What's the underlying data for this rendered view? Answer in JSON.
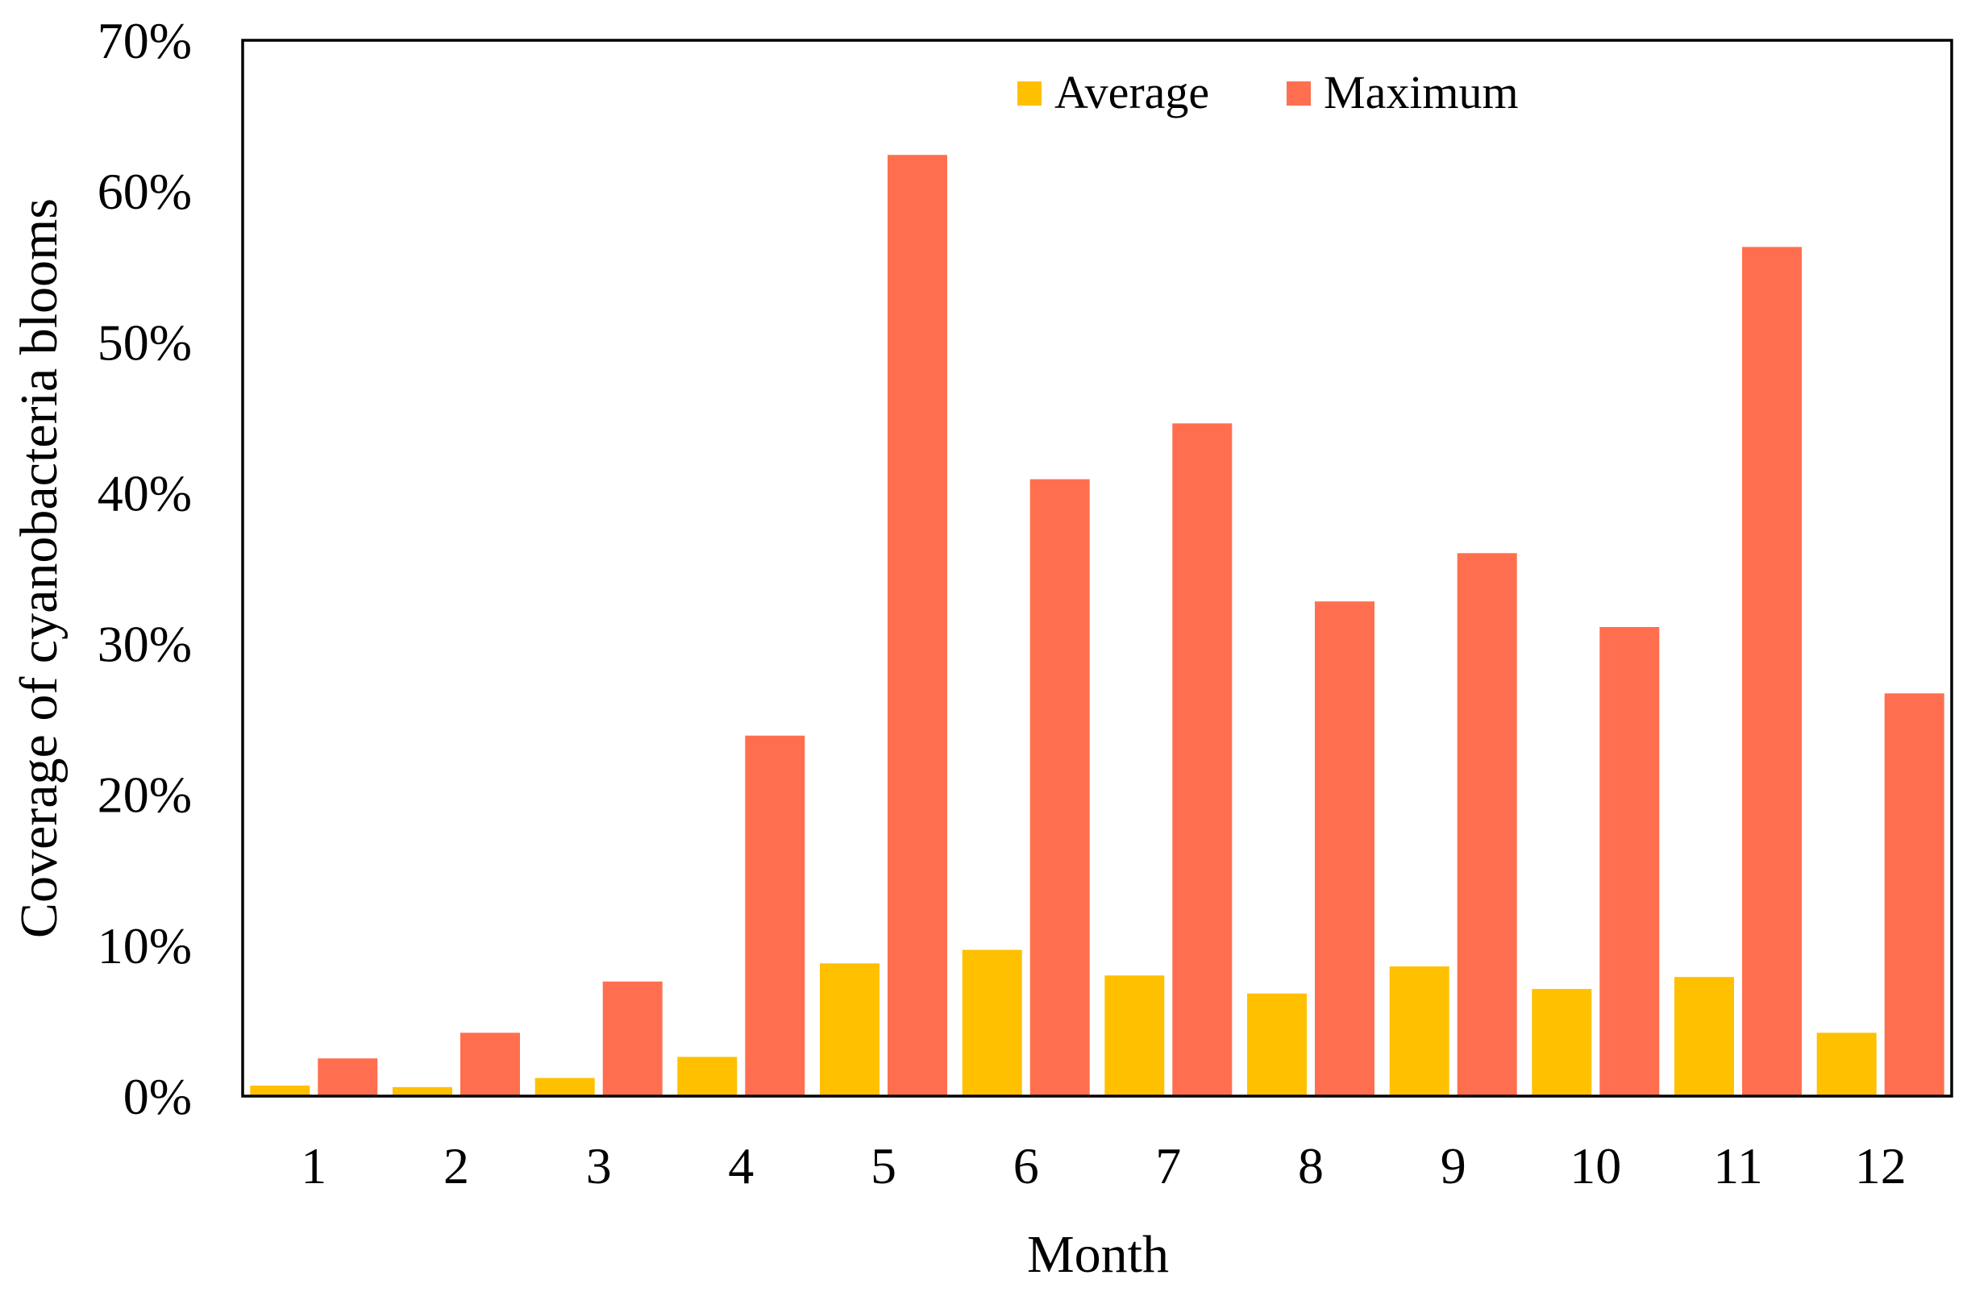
{
  "chart_data": {
    "type": "bar",
    "title": "",
    "xlabel": "Month",
    "ylabel": "Coverage of cyanobacteria blooms",
    "categories": [
      "1",
      "2",
      "3",
      "4",
      "5",
      "6",
      "7",
      "8",
      "9",
      "10",
      "11",
      "12"
    ],
    "series": [
      {
        "name": "Average",
        "color": "#FFC000",
        "values": [
          0.7,
          0.6,
          1.2,
          2.6,
          8.8,
          9.7,
          8.0,
          6.8,
          8.6,
          7.1,
          7.9,
          4.2
        ]
      },
      {
        "name": "Maximum",
        "color": "#FF6F4F",
        "values": [
          2.5,
          4.2,
          7.6,
          23.9,
          62.4,
          40.9,
          44.6,
          32.8,
          36.0,
          31.1,
          56.3,
          26.7
        ]
      }
    ],
    "ylim": [
      0,
      70
    ],
    "yticks": [
      "0%",
      "10%",
      "20%",
      "30%",
      "40%",
      "50%",
      "60%",
      "70%"
    ],
    "grid": false,
    "legend_position": "top-center"
  }
}
